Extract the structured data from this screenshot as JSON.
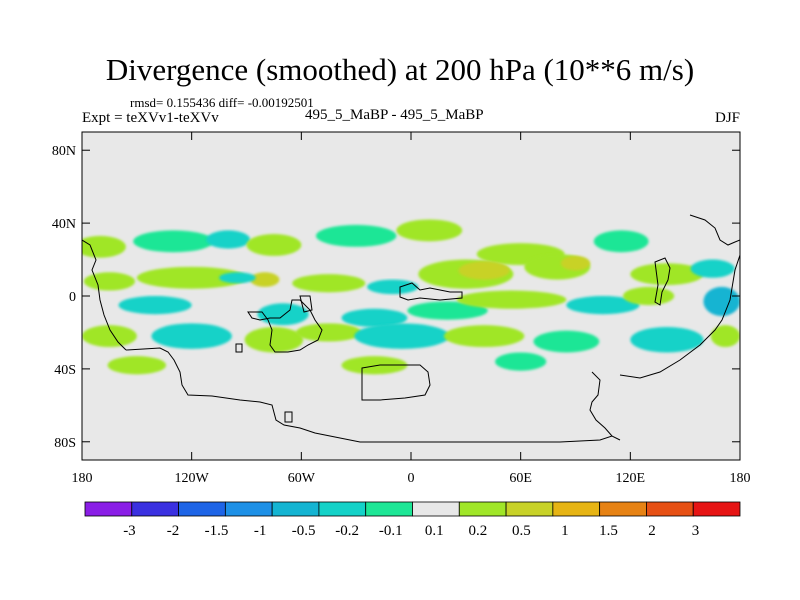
{
  "chart_data": {
    "type": "heatmap",
    "title": "Divergence (smoothed) at 200 hPa (10**6 m/s)",
    "subtitle_stats": "rmsd= 0.155436  diff= -0.00192501",
    "left_label": "Expt = teXVv1-teXVv",
    "center_label": "495_5_MaBP - 495_5_MaBP",
    "right_label": "DJF",
    "x_ticks": [
      "180",
      "120W",
      "60W",
      "0",
      "60E",
      "120E",
      "180"
    ],
    "y_ticks": [
      "80N",
      "40N",
      "0",
      "40S",
      "80S"
    ],
    "xlim": [
      -180,
      180
    ],
    "ylim": [
      -90,
      90
    ],
    "colorbar": {
      "labels": [
        "-3",
        "-2",
        "-1.5",
        "-1",
        "-0.5",
        "-0.2",
        "-0.1",
        "0.1",
        "0.2",
        "0.5",
        "1",
        "1.5",
        "2",
        "3"
      ],
      "colors": [
        "#8a1ee6",
        "#3a30e0",
        "#1e64e6",
        "#1e90e6",
        "#14b4d2",
        "#14d2c8",
        "#1ee696",
        "#e8e8e8",
        "#a0e628",
        "#c8d228",
        "#e6b414",
        "#e68214",
        "#e65014",
        "#e61414"
      ]
    },
    "background_color": "#e8e8e8",
    "blobs": [
      {
        "lon": -170,
        "lat": 27,
        "rlon": 14,
        "rlat": 6,
        "level": "0.2"
      },
      {
        "lon": -130,
        "lat": 30,
        "rlon": 22,
        "rlat": 6,
        "level": "-0.1"
      },
      {
        "lon": -100,
        "lat": 31,
        "rlon": 12,
        "rlat": 5,
        "level": "-0.2"
      },
      {
        "lon": -75,
        "lat": 28,
        "rlon": 15,
        "rlat": 6,
        "level": "0.2"
      },
      {
        "lon": -30,
        "lat": 33,
        "rlon": 22,
        "rlat": 6,
        "level": "-0.1"
      },
      {
        "lon": 10,
        "lat": 36,
        "rlon": 18,
        "rlat": 6,
        "level": "0.2"
      },
      {
        "lon": 60,
        "lat": 23,
        "rlon": 24,
        "rlat": 6,
        "level": "0.2"
      },
      {
        "lon": 115,
        "lat": 30,
        "rlon": 15,
        "rlat": 6,
        "level": "-0.1"
      },
      {
        "lon": -165,
        "lat": 8,
        "rlon": 14,
        "rlat": 5,
        "level": "0.2"
      },
      {
        "lon": -120,
        "lat": 10,
        "rlon": 30,
        "rlat": 6,
        "level": "0.2"
      },
      {
        "lon": -80,
        "lat": 9,
        "rlon": 8,
        "rlat": 4,
        "level": "0.5"
      },
      {
        "lon": -95,
        "lat": 10,
        "rlon": 10,
        "rlat": 3,
        "level": "-0.2"
      },
      {
        "lon": -45,
        "lat": 7,
        "rlon": 20,
        "rlat": 5,
        "level": "0.2"
      },
      {
        "lon": -10,
        "lat": 5,
        "rlon": 14,
        "rlat": 4,
        "level": "-0.2"
      },
      {
        "lon": 30,
        "lat": 12,
        "rlon": 26,
        "rlat": 8,
        "level": "0.2"
      },
      {
        "lon": 40,
        "lat": 14,
        "rlon": 14,
        "rlat": 5,
        "level": "0.5"
      },
      {
        "lon": 80,
        "lat": 16,
        "rlon": 18,
        "rlat": 7,
        "level": "0.2"
      },
      {
        "lon": 90,
        "lat": 18,
        "rlon": 8,
        "rlat": 4,
        "level": "0.5"
      },
      {
        "lon": 140,
        "lat": 12,
        "rlon": 20,
        "rlat": 6,
        "level": "0.2"
      },
      {
        "lon": 165,
        "lat": 15,
        "rlon": 12,
        "rlat": 5,
        "level": "-0.2"
      },
      {
        "lon": -140,
        "lat": -5,
        "rlon": 20,
        "rlat": 5,
        "level": "-0.2"
      },
      {
        "lon": -70,
        "lat": -10,
        "rlon": 14,
        "rlat": 6,
        "level": "-0.2"
      },
      {
        "lon": -20,
        "lat": -12,
        "rlon": 18,
        "rlat": 5,
        "level": "-0.2"
      },
      {
        "lon": 20,
        "lat": -8,
        "rlon": 22,
        "rlat": 5,
        "level": "-0.1"
      },
      {
        "lon": 55,
        "lat": -2,
        "rlon": 30,
        "rlat": 5,
        "level": "0.2"
      },
      {
        "lon": 105,
        "lat": -5,
        "rlon": 20,
        "rlat": 5,
        "level": "-0.2"
      },
      {
        "lon": 130,
        "lat": 0,
        "rlon": 14,
        "rlat": 5,
        "level": "0.2"
      },
      {
        "lon": 170,
        "lat": -3,
        "rlon": 10,
        "rlat": 8,
        "level": "-0.5"
      },
      {
        "lon": -165,
        "lat": -22,
        "rlon": 15,
        "rlat": 6,
        "level": "0.2"
      },
      {
        "lon": -120,
        "lat": -22,
        "rlon": 22,
        "rlat": 7,
        "level": "-0.2"
      },
      {
        "lon": -75,
        "lat": -24,
        "rlon": 16,
        "rlat": 7,
        "level": "0.2"
      },
      {
        "lon": -45,
        "lat": -20,
        "rlon": 18,
        "rlat": 5,
        "level": "0.2"
      },
      {
        "lon": -5,
        "lat": -22,
        "rlon": 26,
        "rlat": 7,
        "level": "-0.2"
      },
      {
        "lon": 40,
        "lat": -22,
        "rlon": 22,
        "rlat": 6,
        "level": "0.2"
      },
      {
        "lon": 85,
        "lat": -25,
        "rlon": 18,
        "rlat": 6,
        "level": "-0.1"
      },
      {
        "lon": 140,
        "lat": -24,
        "rlon": 20,
        "rlat": 7,
        "level": "-0.2"
      },
      {
        "lon": 172,
        "lat": -22,
        "rlon": 8,
        "rlat": 6,
        "level": "0.2"
      },
      {
        "lon": -150,
        "lat": -38,
        "rlon": 16,
        "rlat": 5,
        "level": "0.2"
      },
      {
        "lon": -20,
        "lat": -38,
        "rlon": 18,
        "rlat": 5,
        "level": "0.2"
      },
      {
        "lon": 60,
        "lat": -36,
        "rlon": 14,
        "rlat": 5,
        "level": "-0.1"
      }
    ]
  }
}
